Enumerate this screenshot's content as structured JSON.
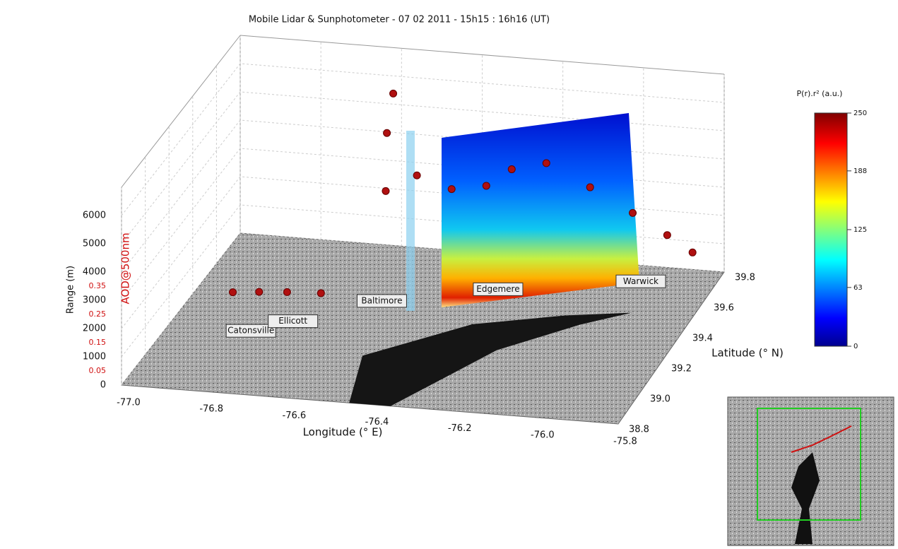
{
  "chart_data": {
    "type": "scatter3d",
    "title": "Mobile Lidar & Sunphotometer - 07 02 2011 - 15h15 : 16h16 (UT)",
    "xlabel": "Longitude (° E)",
    "ylabel": "Latitude (° N)",
    "zlabel": "Range (m)",
    "z2label": "AOD@500nm",
    "xlim": [
      -77.0,
      -75.8
    ],
    "ylim": [
      38.8,
      39.8
    ],
    "zlim": [
      0,
      7000
    ],
    "z2lim": [
      0,
      0.7
    ],
    "xticks": [
      {
        "value": -77.0,
        "label": "-77.0"
      },
      {
        "value": -76.8,
        "label": "-76.8"
      },
      {
        "value": -76.6,
        "label": "-76.6"
      },
      {
        "value": -76.4,
        "label": "-76.4"
      },
      {
        "value": -76.2,
        "label": "-76.2"
      },
      {
        "value": -76.0,
        "label": "-76.0"
      },
      {
        "value": -75.8,
        "label": "-75.8"
      }
    ],
    "yticks": [
      {
        "value": 38.8,
        "label": "38.8"
      },
      {
        "value": 39.0,
        "label": "39.0"
      },
      {
        "value": 39.2,
        "label": "39.2"
      },
      {
        "value": 39.4,
        "label": "39.4"
      },
      {
        "value": 39.6,
        "label": "39.6"
      },
      {
        "value": 39.8,
        "label": "39.8"
      }
    ],
    "zticks": [
      0,
      1000,
      2000,
      3000,
      4000,
      5000,
      6000
    ],
    "z2ticks": [
      0.05,
      0.15,
      0.25,
      0.35
    ],
    "grid": true,
    "series": [
      {
        "color": "#b01010",
        "x": [
          -76.85,
          -76.8,
          -76.74,
          -76.66,
          -76.56,
          -76.56,
          -76.55,
          -76.5,
          -76.42,
          -76.34,
          -76.28,
          -76.2,
          -76.1,
          -76.0,
          -75.92,
          -75.86
        ],
        "y": [
          39.22,
          39.27,
          39.3,
          39.31,
          39.52,
          39.53,
          39.55,
          39.58,
          39.6,
          39.62,
          39.63,
          39.65,
          39.68,
          39.7,
          39.72,
          39.73
        ],
        "z2": [
          0.12,
          0.1,
          0.09,
          0.09,
          0.35,
          0.55,
          0.68,
          0.38,
          0.33,
          0.34,
          0.4,
          0.42,
          0.33,
          0.24,
          0.16,
          0.1
        ]
      }
    ],
    "places": [
      {
        "name": "Catonsville",
        "x": -76.8,
        "y": 39.2
      },
      {
        "name": "Ellicott",
        "x": -76.72,
        "y": 39.28
      },
      {
        "name": "Baltimore",
        "x": -76.55,
        "y": 39.45
      },
      {
        "name": "Edgemere",
        "x": -76.3,
        "y": 39.58
      },
      {
        "name": "Warwick",
        "x": -75.98,
        "y": 39.7
      }
    ],
    "colorbar": {
      "label": "P(r).r² (a.u.)",
      "lim": [
        0,
        250
      ],
      "ticks": [
        0,
        63,
        125,
        188,
        250
      ]
    }
  }
}
